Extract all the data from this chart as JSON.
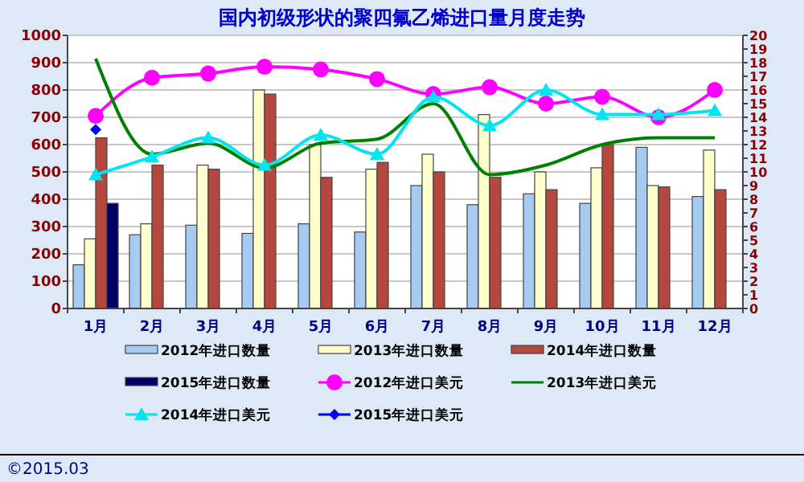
{
  "chart_data": {
    "type": "bar",
    "title": "国内初级形状的聚四氟乙烯进口量月度走势",
    "categories": [
      "1月",
      "2月",
      "3月",
      "4月",
      "5月",
      "6月",
      "7月",
      "8月",
      "9月",
      "10月",
      "11月",
      "12月"
    ],
    "series": [
      {
        "name": "2012年进口数量",
        "color": "#a6cbf0",
        "values": [
          160,
          270,
          305,
          275,
          310,
          280,
          450,
          380,
          420,
          385,
          590,
          410
        ]
      },
      {
        "name": "2013年进口数量",
        "color": "#ffffcc",
        "values": [
          255,
          310,
          525,
          800,
          600,
          510,
          565,
          710,
          500,
          515,
          450,
          580
        ]
      },
      {
        "name": "2014年进口数量",
        "color": "#b5473f",
        "values": [
          625,
          525,
          510,
          785,
          480,
          535,
          500,
          480,
          435,
          600,
          445,
          435
        ]
      },
      {
        "name": "2015年进口数量",
        "color": "#000066",
        "values": [
          385,
          null,
          null,
          null,
          null,
          null,
          null,
          null,
          null,
          null,
          null,
          null
        ]
      },
      {
        "name": "2012年进口美元",
        "type": "line",
        "axis": "y2",
        "marker": "circle",
        "color": "#ff00ff",
        "values": [
          14.1,
          16.9,
          17.2,
          17.7,
          17.5,
          16.8,
          15.7,
          16.2,
          15,
          15.5,
          14,
          16
        ]
      },
      {
        "name": "2013年进口美元",
        "type": "line",
        "axis": "y2",
        "marker": "none",
        "color": "#008000",
        "values": [
          18.3,
          11.3,
          12.1,
          10.3,
          12.1,
          12.4,
          15,
          9.8,
          10.5,
          12,
          12.5,
          12.5
        ]
      },
      {
        "name": "2014年进口美元",
        "type": "line",
        "axis": "y2",
        "marker": "triangle",
        "color": "#00e5ee",
        "values": [
          9.8,
          11.1,
          12.5,
          10.5,
          12.7,
          11.3,
          15.5,
          13.4,
          16,
          14.2,
          14.2,
          14.5
        ]
      },
      {
        "name": "2015年进口美元",
        "type": "line",
        "axis": "y2",
        "marker": "diamond",
        "color": "#0000ff",
        "values": [
          13.1,
          null,
          null,
          null,
          null,
          null,
          null,
          null,
          null,
          null,
          null,
          null
        ]
      }
    ],
    "ylim": [
      0,
      1000
    ],
    "yticks": [
      0,
      100,
      200,
      300,
      400,
      500,
      600,
      700,
      800,
      900,
      1000
    ],
    "y2lim": [
      0,
      20
    ],
    "y2ticks": [
      0,
      1,
      2,
      3,
      4,
      5,
      6,
      7,
      8,
      9,
      10,
      11,
      12,
      13,
      14,
      15,
      16,
      17,
      18,
      19,
      20
    ],
    "grid": "y",
    "legend": "bottom",
    "annotations": [
      "©2015.03"
    ]
  }
}
